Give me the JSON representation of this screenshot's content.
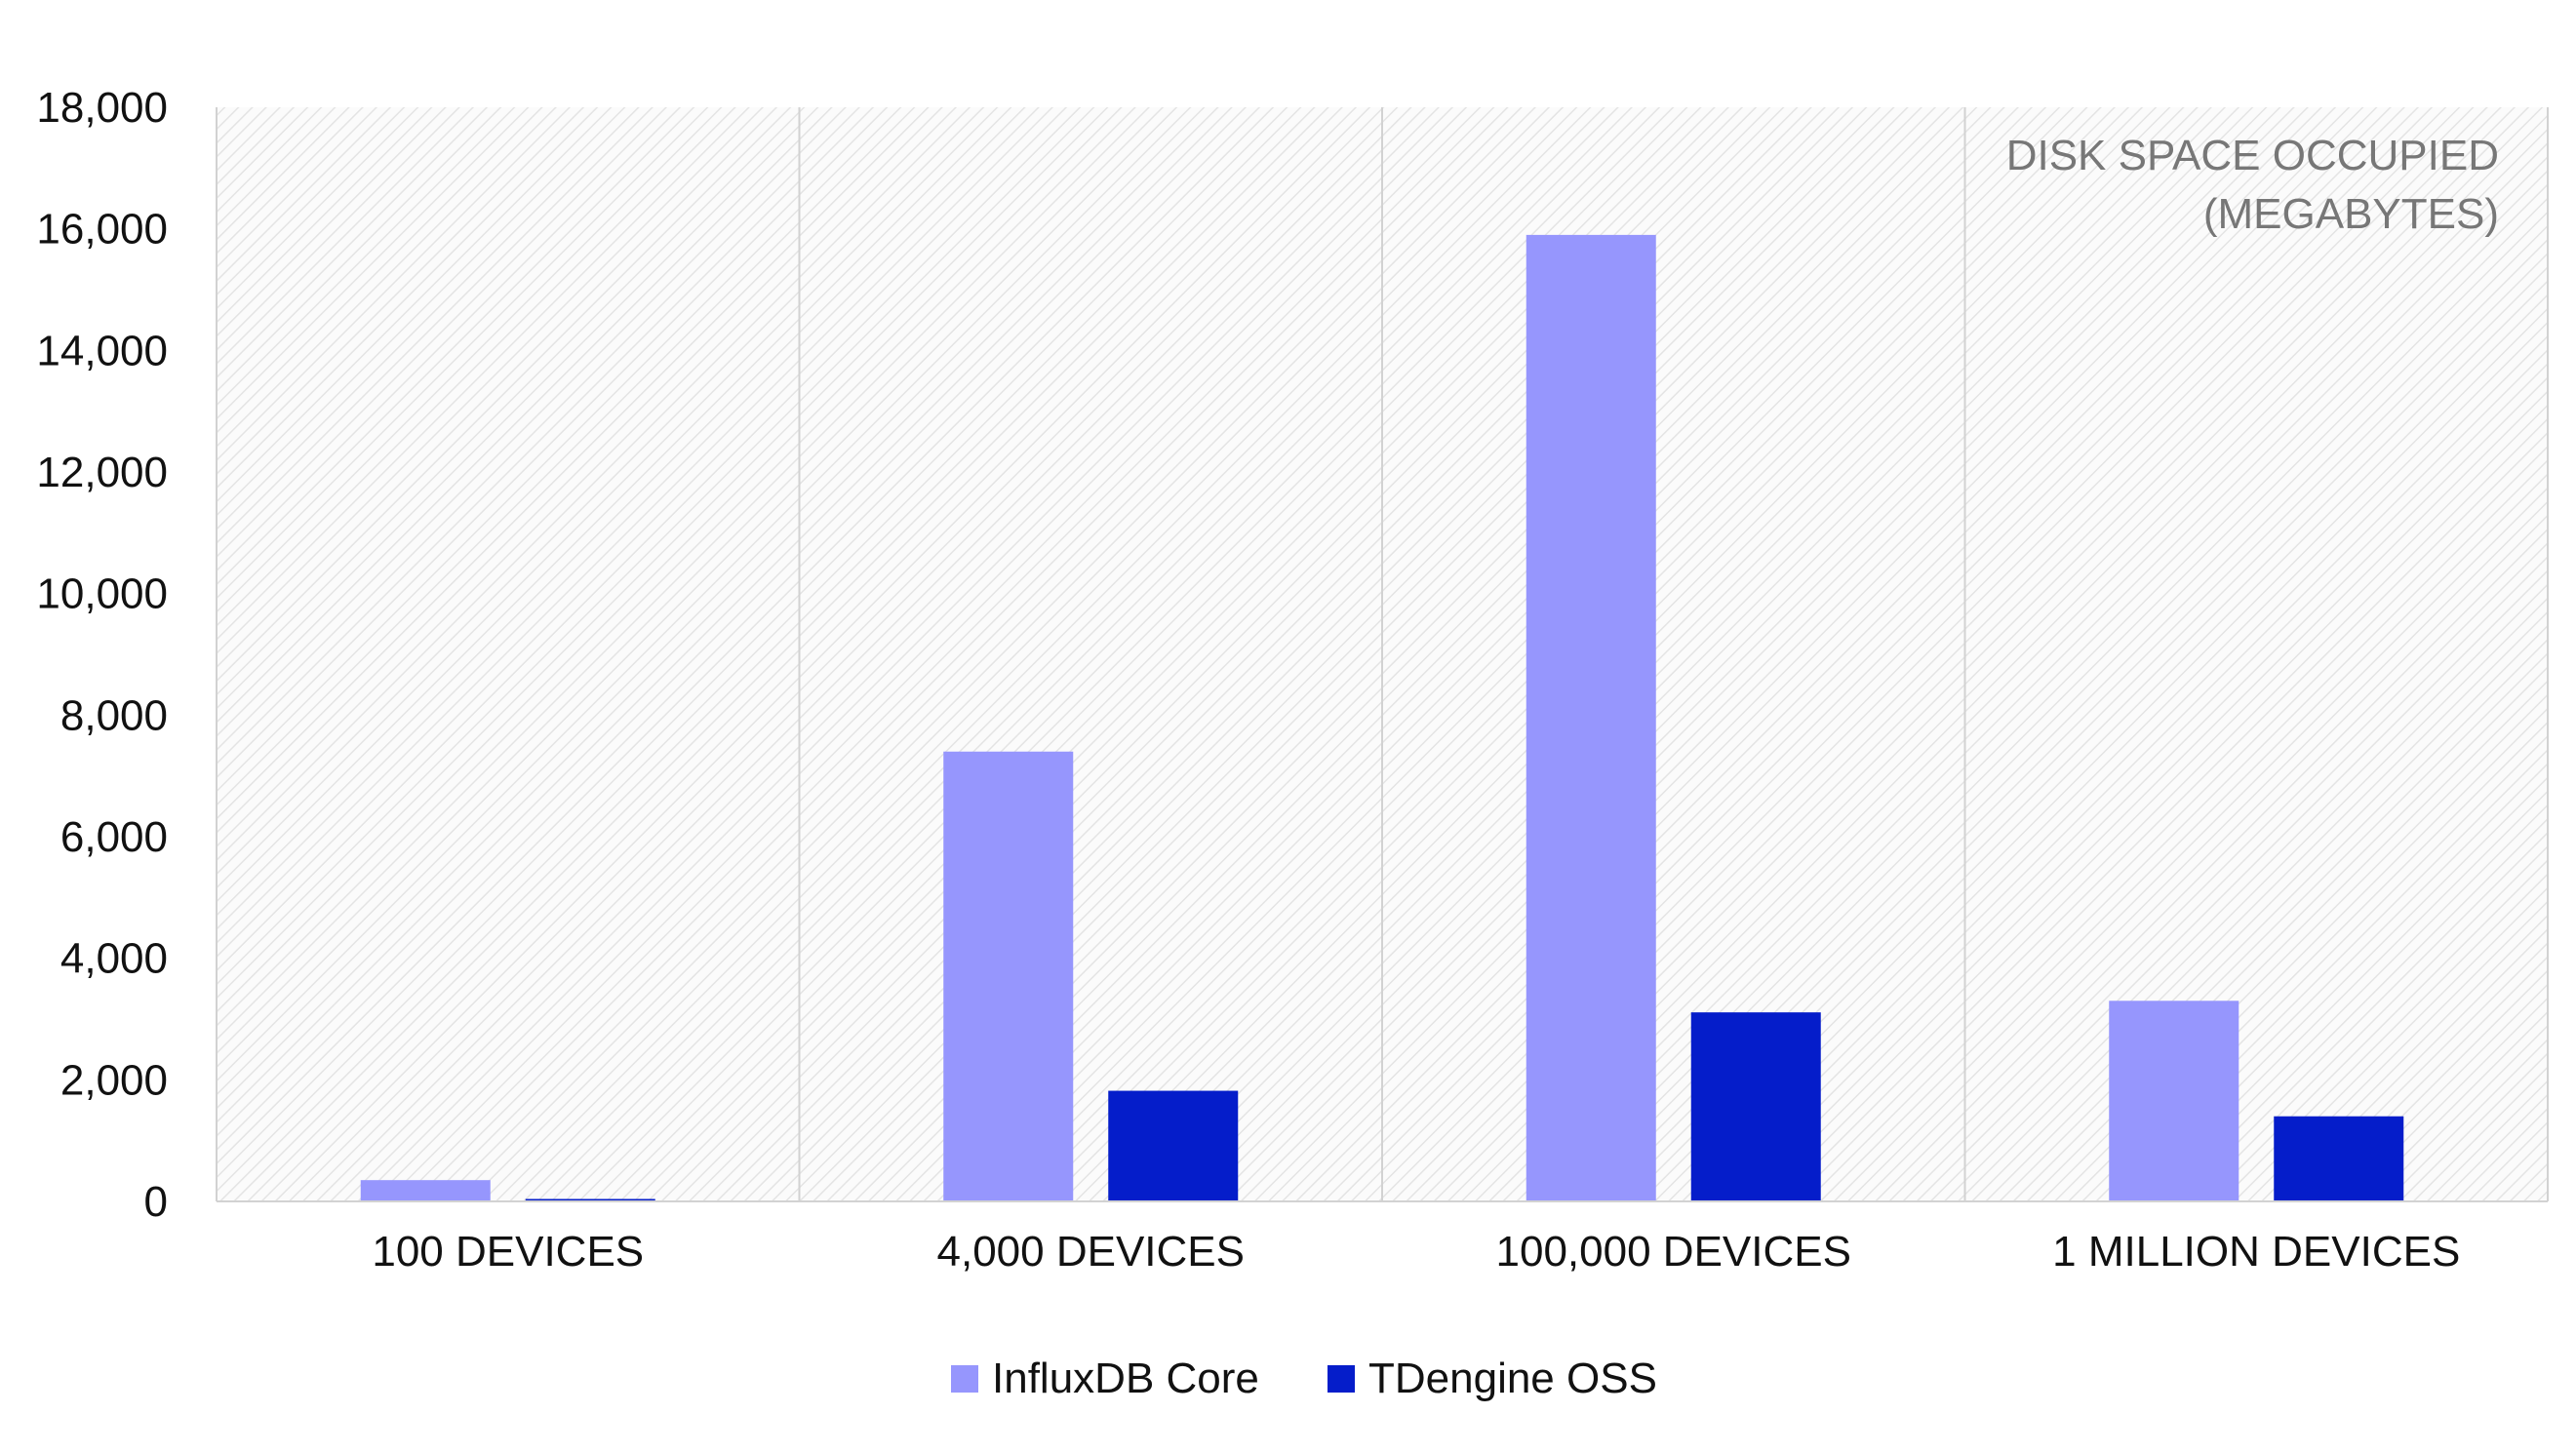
{
  "chart_data": {
    "type": "bar",
    "title": "",
    "annotation": [
      "DISK SPACE OCCUPIED",
      "(MEGABYTES)"
    ],
    "xlabel": "",
    "ylabel": "",
    "categories": [
      "100 DEVICES",
      "4,000 DEVICES",
      "100,000 DEVICES",
      "1 MILLION DEVICES"
    ],
    "series": [
      {
        "name": "InfluxDB Core",
        "color": "#9696fd",
        "values": [
          350,
          7400,
          15900,
          3300
        ]
      },
      {
        "name": "TDengine OSS",
        "color": "#051dca",
        "values": [
          40,
          1820,
          3110,
          1400
        ]
      }
    ],
    "ylim": [
      0,
      18000
    ],
    "yticks": [
      0,
      2000,
      4000,
      6000,
      8000,
      10000,
      12000,
      14000,
      16000,
      18000
    ],
    "ytick_labels": [
      "0",
      "2,000",
      "4,000",
      "6,000",
      "8,000",
      "10,000",
      "12,000",
      "14,000",
      "16,000",
      "18,000"
    ],
    "grid": "vertical category separators",
    "background": "diagonal hatch",
    "legend_position": "bottom-center"
  }
}
